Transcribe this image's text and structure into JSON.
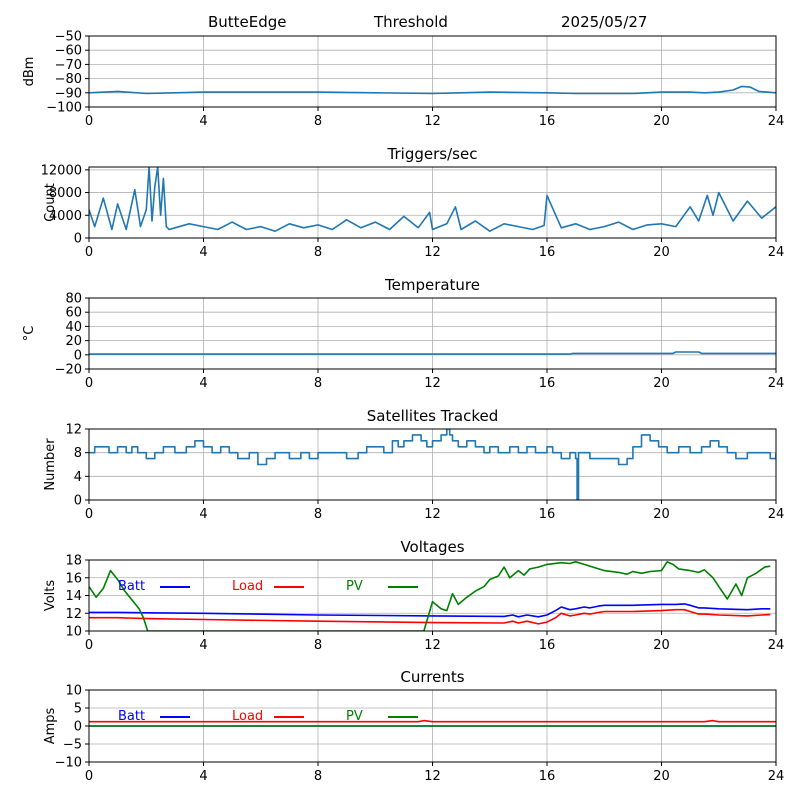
{
  "header": {
    "site": "ButteEdge",
    "mode": "Threshold",
    "date": "2025/05/27"
  },
  "chart_data": [
    {
      "type": "line",
      "title": "",
      "ylabel": "dBm",
      "xlim": [
        0,
        24
      ],
      "ylim": [
        -100,
        -50
      ],
      "xticks": [
        0,
        4,
        8,
        12,
        16,
        20,
        24
      ],
      "yticks": [
        -100,
        -90,
        -80,
        -70,
        -60,
        -50
      ],
      "grid": true,
      "series": [
        {
          "color": "#1f77b4",
          "x": [
            0,
            1,
            2,
            3,
            4,
            6,
            8,
            10,
            12,
            13,
            14,
            16,
            17,
            18,
            19,
            20,
            21,
            21.5,
            22,
            22.5,
            22.8,
            23.1,
            23.4,
            23.7,
            24
          ],
          "y": [
            -90,
            -89,
            -90.5,
            -90,
            -89.5,
            -89.5,
            -89.5,
            -90,
            -90.5,
            -90,
            -89.5,
            -90,
            -90.5,
            -90.5,
            -90.5,
            -89.5,
            -89.5,
            -90,
            -89.5,
            -88,
            -85.5,
            -86,
            -89,
            -89.5,
            -90
          ]
        }
      ]
    },
    {
      "type": "line",
      "title": "Triggers/sec",
      "ylabel": "Count",
      "xlim": [
        0,
        24
      ],
      "ylim": [
        0,
        12500
      ],
      "xticks": [
        0,
        4,
        8,
        12,
        16,
        20,
        24
      ],
      "yticks": [
        0,
        4000,
        8000,
        12000
      ],
      "grid": true,
      "series": [
        {
          "color": "#1f77b4",
          "x": [
            0,
            0.2,
            0.5,
            0.8,
            1.0,
            1.3,
            1.6,
            1.8,
            2.0,
            2.1,
            2.2,
            2.3,
            2.4,
            2.5,
            2.6,
            2.7,
            2.8,
            3.0,
            3.5,
            4.0,
            4.5,
            5.0,
            5.5,
            6.0,
            6.5,
            7.0,
            7.5,
            8.0,
            8.5,
            9.0,
            9.5,
            10.0,
            10.5,
            11.0,
            11.5,
            11.9,
            12.0,
            12.5,
            12.8,
            13.0,
            13.5,
            14.0,
            14.5,
            15.0,
            15.5,
            15.9,
            16.0,
            16.5,
            17.0,
            17.5,
            18.0,
            18.5,
            19.0,
            19.5,
            20.0,
            20.5,
            21.0,
            21.3,
            21.6,
            21.8,
            22.0,
            22.5,
            23.0,
            23.5,
            24.0
          ],
          "y": [
            5000,
            2000,
            7000,
            1500,
            6000,
            1500,
            8500,
            2000,
            5000,
            12500,
            3000,
            9000,
            12500,
            4000,
            10500,
            2000,
            1500,
            1800,
            2500,
            2000,
            1500,
            2800,
            1500,
            2000,
            1200,
            2500,
            1800,
            2300,
            1500,
            3200,
            1800,
            2800,
            1500,
            3800,
            1800,
            4500,
            1500,
            2500,
            5500,
            1500,
            3000,
            1200,
            2500,
            2000,
            1500,
            2200,
            7500,
            1800,
            2500,
            1500,
            2000,
            2800,
            1500,
            2300,
            2500,
            2000,
            5500,
            3000,
            7500,
            4000,
            8000,
            3000,
            6500,
            3500,
            5500
          ]
        }
      ]
    },
    {
      "type": "line",
      "title": "Temperature",
      "ylabel": "°C",
      "xlim": [
        0,
        24
      ],
      "ylim": [
        -20,
        80
      ],
      "xticks": [
        0,
        4,
        8,
        12,
        16,
        20,
        24
      ],
      "yticks": [
        -20,
        0,
        20,
        40,
        60,
        80
      ],
      "grid": true,
      "series": [
        {
          "color": "#1f77b4",
          "x": [
            0,
            16.8,
            16.9,
            20.4,
            20.5,
            21.3,
            21.4,
            24
          ],
          "y": [
            1,
            1,
            2,
            2,
            4,
            4,
            2,
            2
          ]
        }
      ]
    },
    {
      "type": "line",
      "title": "Satellites Tracked",
      "ylabel": "Number",
      "xlim": [
        0,
        24
      ],
      "ylim": [
        0,
        12
      ],
      "xticks": [
        0,
        4,
        8,
        12,
        16,
        20,
        24
      ],
      "yticks": [
        0,
        4,
        8,
        12
      ],
      "grid": true,
      "series": [
        {
          "color": "#1f77b4",
          "step": true,
          "x": [
            0,
            0.2,
            0.7,
            1.0,
            1.3,
            1.5,
            1.7,
            2.0,
            2.3,
            2.6,
            3.0,
            3.4,
            3.7,
            4.0,
            4.3,
            4.6,
            4.9,
            5.2,
            5.6,
            5.9,
            6.2,
            6.5,
            7.0,
            7.4,
            7.7,
            8.0,
            8.4,
            8.8,
            9.0,
            9.4,
            9.7,
            10.0,
            10.3,
            10.6,
            10.8,
            11.0,
            11.3,
            11.6,
            11.8,
            12.0,
            12.3,
            12.5,
            12.6,
            12.7,
            12.9,
            13.2,
            13.5,
            13.8,
            14.0,
            14.3,
            14.7,
            15.0,
            15.3,
            15.6,
            16.0,
            16.2,
            16.5,
            16.8,
            17.0,
            17.05,
            17.1,
            17.5,
            18.0,
            18.5,
            18.8,
            19.0,
            19.3,
            19.6,
            19.9,
            20.2,
            20.6,
            21.0,
            21.4,
            21.7,
            22.0,
            22.3,
            22.6,
            23.0,
            23.5,
            23.8,
            24.0
          ],
          "y": [
            8,
            9,
            8,
            9,
            8,
            9,
            8,
            7,
            8,
            9,
            8,
            9,
            10,
            9,
            8,
            9,
            8,
            7,
            8,
            6,
            7,
            8,
            7,
            8,
            7,
            8,
            8,
            8,
            7,
            8,
            9,
            9,
            8,
            10,
            9,
            10,
            11,
            10,
            9,
            10,
            11,
            12,
            11,
            10,
            9,
            10,
            9,
            8,
            9,
            8,
            9,
            8,
            9,
            8,
            9,
            8,
            7,
            8,
            7,
            0,
            8,
            7,
            7,
            6,
            7,
            9,
            11,
            10,
            9,
            8,
            9,
            8,
            9,
            10,
            9,
            8,
            7,
            8,
            8,
            7,
            8
          ]
        }
      ]
    },
    {
      "type": "line",
      "title": "Voltages",
      "ylabel": "Volts",
      "xlim": [
        0,
        24
      ],
      "ylim": [
        10,
        18
      ],
      "xticks": [
        0,
        4,
        8,
        12,
        16,
        20,
        24
      ],
      "yticks": [
        10,
        12,
        14,
        16,
        18
      ],
      "grid": true,
      "legend": "upper-left",
      "series": [
        {
          "name": "Batt",
          "color": "#0000ff",
          "x": [
            0,
            1,
            2,
            4,
            8,
            12,
            14.5,
            14.8,
            15.0,
            15.3,
            15.7,
            16.0,
            16.3,
            16.5,
            16.8,
            17.0,
            17.3,
            17.5,
            17.8,
            18.0,
            19.0,
            20.0,
            20.5,
            20.8,
            21.0,
            21.3,
            21.5,
            22.0,
            23.0,
            23.5,
            23.8
          ],
          "y": [
            12.1,
            12.1,
            12.05,
            12.0,
            11.8,
            11.7,
            11.65,
            11.8,
            11.6,
            11.8,
            11.6,
            11.8,
            12.3,
            12.7,
            12.4,
            12.5,
            12.7,
            12.6,
            12.8,
            12.9,
            12.9,
            13.0,
            13.0,
            13.05,
            12.9,
            12.6,
            12.6,
            12.5,
            12.4,
            12.5,
            12.5
          ]
        },
        {
          "name": "Load",
          "color": "#ff0000",
          "x": [
            0,
            1,
            2,
            4,
            8,
            12,
            14.5,
            14.8,
            15.0,
            15.3,
            15.7,
            16.0,
            16.3,
            16.5,
            16.8,
            17.0,
            17.3,
            17.5,
            17.8,
            18.0,
            19.0,
            20.0,
            20.5,
            20.8,
            21.0,
            21.3,
            21.5,
            22.0,
            23.0,
            23.5,
            23.8
          ],
          "y": [
            11.5,
            11.5,
            11.4,
            11.3,
            11.1,
            10.95,
            10.9,
            11.1,
            10.9,
            11.1,
            10.8,
            11.0,
            11.5,
            12.0,
            11.7,
            11.8,
            12.0,
            11.9,
            12.1,
            12.2,
            12.2,
            12.3,
            12.4,
            12.4,
            12.2,
            11.9,
            11.9,
            11.8,
            11.7,
            11.8,
            11.85
          ]
        },
        {
          "name": "PV",
          "color": "#008000",
          "x": [
            0,
            0.25,
            0.5,
            0.75,
            1.0,
            1.25,
            1.5,
            1.75,
            1.9,
            2.05,
            11.7,
            12.0,
            12.3,
            12.5,
            12.7,
            12.9,
            13.2,
            13.5,
            13.8,
            14.0,
            14.3,
            14.5,
            14.7,
            15.0,
            15.2,
            15.4,
            15.7,
            16.0,
            16.5,
            16.8,
            17.0,
            17.3,
            18.0,
            18.5,
            18.8,
            19.0,
            19.3,
            19.6,
            20.0,
            20.2,
            20.4,
            20.6,
            21.0,
            21.3,
            21.5,
            21.8,
            22.0,
            22.3,
            22.6,
            22.8,
            23.0,
            23.3,
            23.6,
            23.8
          ],
          "y": [
            15.0,
            13.8,
            14.8,
            16.8,
            15.8,
            14.5,
            13.5,
            12.5,
            11.5,
            10.0,
            10.0,
            13.3,
            12.5,
            12.3,
            14.2,
            13.0,
            13.8,
            14.5,
            15.0,
            15.8,
            16.2,
            17.2,
            16.0,
            16.8,
            16.3,
            17.0,
            17.2,
            17.5,
            17.7,
            17.6,
            17.8,
            17.5,
            16.8,
            16.6,
            16.4,
            16.7,
            16.5,
            16.7,
            16.8,
            17.8,
            17.5,
            17.0,
            16.8,
            16.6,
            16.9,
            16.0,
            15.0,
            13.6,
            15.3,
            14.0,
            16.0,
            16.5,
            17.2,
            17.3
          ]
        }
      ]
    },
    {
      "type": "line",
      "title": "Currents",
      "ylabel": "Amps",
      "xlim": [
        0,
        24
      ],
      "ylim": [
        -10,
        10
      ],
      "xticks": [
        0,
        4,
        8,
        12,
        16,
        20,
        24
      ],
      "yticks": [
        -10,
        -5,
        0,
        5,
        10
      ],
      "grid": true,
      "legend": "upper-left",
      "series": [
        {
          "name": "Batt",
          "color": "#0000ff",
          "x": [
            0,
            24
          ],
          "y": [
            0,
            0
          ]
        },
        {
          "name": "Load",
          "color": "#ff0000",
          "x": [
            0,
            4,
            8,
            11.5,
            11.7,
            12.0,
            16,
            20,
            21.5,
            21.8,
            22.0,
            24
          ],
          "y": [
            1.2,
            1.2,
            1.2,
            1.2,
            1.5,
            1.2,
            1.2,
            1.2,
            1.2,
            1.5,
            1.2,
            1.2
          ]
        },
        {
          "name": "PV",
          "color": "#008000",
          "x": [
            0,
            24
          ],
          "y": [
            0,
            0
          ]
        }
      ]
    }
  ]
}
